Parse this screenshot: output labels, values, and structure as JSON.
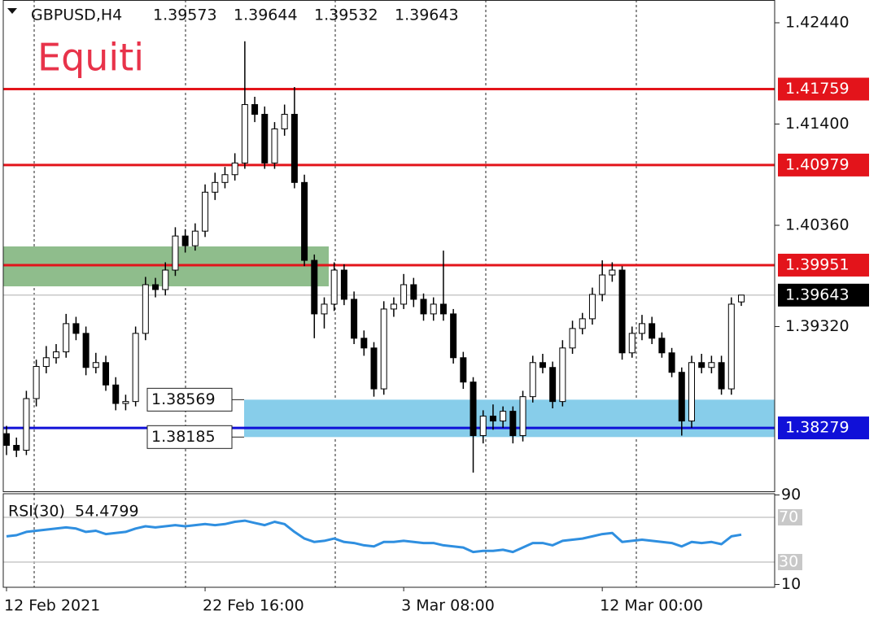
{
  "chart_data": {
    "type": "candlestick",
    "title": "GBPUSD,H4",
    "watermark": "Equiti",
    "categories": [
      "12 Feb 2021",
      null,
      null,
      null,
      null,
      null,
      null,
      null,
      null,
      null,
      null,
      null,
      null,
      null,
      null,
      null,
      null,
      null,
      null,
      null,
      "22 Feb 16:00",
      null,
      null,
      null,
      null,
      null,
      null,
      null,
      null,
      null,
      null,
      null,
      null,
      null,
      null,
      null,
      null,
      null,
      null,
      null,
      "3 Mar 08:00",
      null,
      null,
      null,
      null,
      null,
      null,
      null,
      null,
      null,
      null,
      null,
      null,
      null,
      null,
      null,
      null,
      null,
      null,
      null,
      "12 Mar 00:00",
      null,
      null,
      null,
      null,
      null,
      null,
      null,
      null,
      null,
      null,
      null,
      null,
      null,
      null
    ],
    "open": [
      1.3822,
      1.381,
      1.3805,
      1.3858,
      1.3891,
      1.39,
      1.3906,
      1.3935,
      1.3925,
      1.389,
      1.3895,
      1.3872,
      1.3853,
      1.3855,
      1.3925,
      1.3975,
      1.397,
      1.399,
      1.4025,
      1.4015,
      1.403,
      1.407,
      1.408,
      1.4088,
      1.41,
      1.416,
      1.415,
      1.41,
      1.4135,
      1.415,
      1.408,
      1.4,
      1.3945,
      1.3955,
      1.399,
      1.396,
      1.392,
      1.391,
      1.3868,
      1.395,
      1.3955,
      1.3975,
      1.396,
      1.3945,
      1.3955,
      1.3945,
      1.39,
      1.3875,
      1.382,
      1.384,
      1.3835,
      1.3845,
      1.382,
      1.386,
      1.3895,
      1.389,
      1.3855,
      1.391,
      1.393,
      1.394,
      1.3965,
      1.3985,
      1.399,
      1.3905,
      1.3925,
      1.3935,
      1.392,
      1.3905,
      1.3885,
      1.3835,
      1.3895,
      1.389,
      1.3895,
      1.3868,
      1.39573
    ],
    "high": [
      1.383,
      1.3818,
      1.3866,
      1.3898,
      1.3912,
      1.3914,
      1.3945,
      1.3942,
      1.3932,
      1.3905,
      1.3902,
      1.388,
      1.3862,
      1.3932,
      1.3983,
      1.3982,
      1.3998,
      1.4034,
      1.4032,
      1.4038,
      1.4078,
      1.409,
      1.4096,
      1.411,
      1.4225,
      1.4168,
      1.4158,
      1.4142,
      1.416,
      1.4178,
      1.4088,
      1.4006,
      1.3962,
      1.3998,
      1.3996,
      1.3968,
      1.3928,
      1.3916,
      1.3958,
      1.3962,
      1.3986,
      1.3982,
      1.3966,
      1.3962,
      1.401,
      1.395,
      1.3906,
      1.388,
      1.3846,
      1.3852,
      1.385,
      1.385,
      1.3866,
      1.3902,
      1.3904,
      1.3896,
      1.3918,
      1.3938,
      1.3946,
      1.3972,
      1.4,
      1.3998,
      1.3994,
      1.3932,
      1.3944,
      1.3942,
      1.3926,
      1.391,
      1.389,
      1.3902,
      1.3904,
      1.3902,
      1.3902,
      1.3962,
      1.39644
    ],
    "low": [
      1.38,
      1.3798,
      1.38,
      1.385,
      1.3884,
      1.3894,
      1.39,
      1.3918,
      1.3882,
      1.3884,
      1.3866,
      1.3846,
      1.3846,
      1.385,
      1.3918,
      1.3962,
      1.3964,
      1.3984,
      1.4008,
      1.401,
      1.4024,
      1.4062,
      1.4074,
      1.4082,
      1.4094,
      1.4142,
      1.4094,
      1.4094,
      1.4128,
      1.4074,
      1.3994,
      1.392,
      1.393,
      1.3948,
      1.3954,
      1.3914,
      1.3902,
      1.386,
      1.3862,
      1.3942,
      1.395,
      1.3952,
      1.3938,
      1.3938,
      1.3938,
      1.3894,
      1.3868,
      1.3782,
      1.3812,
      1.3826,
      1.3828,
      1.3812,
      1.3814,
      1.3854,
      1.3884,
      1.3848,
      1.385,
      1.3904,
      1.3924,
      1.3934,
      1.3958,
      1.3978,
      1.3898,
      1.39,
      1.3918,
      1.3914,
      1.39,
      1.388,
      1.382,
      1.3828,
      1.3884,
      1.3884,
      1.3862,
      1.3862,
      1.39532
    ],
    "close": [
      1.381,
      1.3805,
      1.3858,
      1.3891,
      1.39,
      1.3906,
      1.3935,
      1.3925,
      1.389,
      1.3895,
      1.3872,
      1.3853,
      1.3855,
      1.3925,
      1.3975,
      1.397,
      1.399,
      1.4025,
      1.4015,
      1.403,
      1.407,
      1.408,
      1.4088,
      1.41,
      1.416,
      1.415,
      1.41,
      1.4135,
      1.415,
      1.408,
      1.4,
      1.3945,
      1.3955,
      1.399,
      1.396,
      1.392,
      1.391,
      1.3868,
      1.395,
      1.3955,
      1.3975,
      1.396,
      1.3945,
      1.3955,
      1.3945,
      1.39,
      1.3875,
      1.382,
      1.384,
      1.3835,
      1.3845,
      1.382,
      1.386,
      1.3895,
      1.389,
      1.3855,
      1.391,
      1.393,
      1.394,
      1.3965,
      1.3985,
      1.399,
      1.3905,
      1.3925,
      1.3935,
      1.392,
      1.3905,
      1.3885,
      1.3835,
      1.3895,
      1.389,
      1.3895,
      1.3868,
      1.3955,
      1.39643
    ],
    "ylim": [
      1.37628,
      1.42674
    ],
    "yticks": [
      {
        "value": 1.4244,
        "label": "1.42440"
      },
      {
        "value": 1.414,
        "label": "1.41400"
      },
      {
        "value": 1.4036,
        "label": "1.40360"
      },
      {
        "value": 1.3932,
        "label": "1.39320"
      }
    ],
    "levels": [
      {
        "value": 1.41759,
        "color": "#e3141b"
      },
      {
        "value": 1.40979,
        "color": "#e3141b"
      },
      {
        "value": 1.39951,
        "color": "#e3141b"
      },
      {
        "value": 1.38279,
        "color": "#1010d8"
      }
    ],
    "zones": [
      {
        "low": 1.39733,
        "high": 1.40143,
        "color": "#8fbd8c"
      },
      {
        "low": 1.38185,
        "high": 1.38569,
        "color": "#87cdea"
      }
    ],
    "rsi": {
      "name": "RSI(30)",
      "values": [
        53,
        54,
        57,
        58,
        59,
        60,
        61,
        60,
        57,
        58,
        55,
        56,
        57,
        60,
        62,
        61,
        62,
        63,
        62,
        63,
        64,
        63,
        64,
        66,
        67,
        65,
        63,
        66,
        64,
        57,
        51,
        48,
        49,
        51,
        48,
        47,
        45,
        44,
        48,
        48,
        49,
        48,
        47,
        47,
        45,
        44,
        43,
        39,
        40,
        40,
        41,
        39,
        43,
        47,
        47,
        45,
        49,
        50,
        51,
        53,
        55,
        56,
        48,
        49,
        50,
        49,
        48,
        47,
        44,
        48,
        47,
        48,
        46,
        53,
        54.4799
      ],
      "color": "#2f8fe0",
      "ylim": [
        10,
        90
      ],
      "yticks": [
        90,
        10
      ],
      "levels": [
        70,
        30
      ]
    }
  }
}
